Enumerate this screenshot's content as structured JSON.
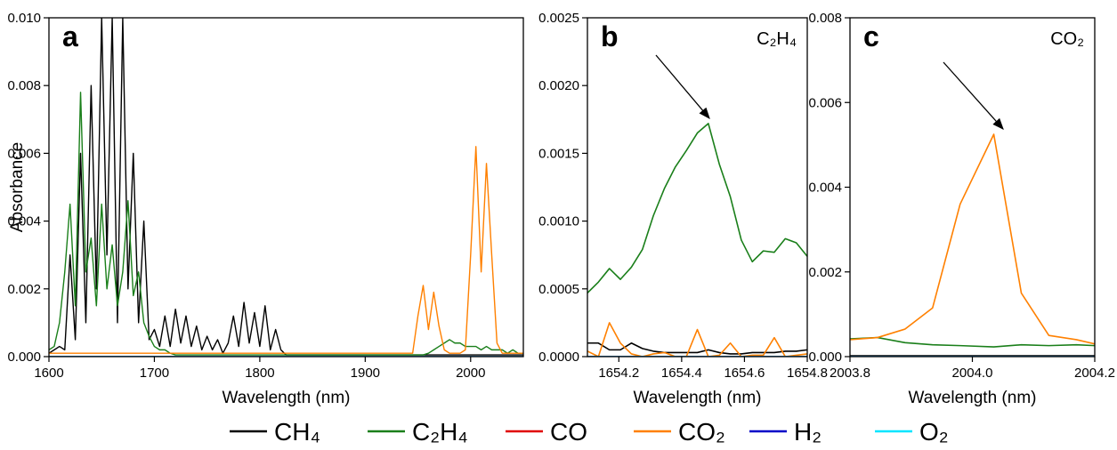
{
  "chart_data": [
    {
      "type": "line",
      "panel_label": "a",
      "xlabel": "Wavelength (nm)",
      "ylabel": "Absorbance",
      "xlim": [
        1600,
        2050
      ],
      "ylim": [
        0,
        0.01
      ],
      "xticks": [
        1600,
        1700,
        1800,
        1900,
        2000
      ],
      "yticks": [
        {
          "value": 0,
          "label": "0.000"
        },
        0.002,
        0.004,
        0.006,
        0.008,
        {
          "value": 0.01,
          "label": "0.010"
        }
      ],
      "x": [
        1600,
        1605,
        1610,
        1615,
        1620,
        1625,
        1630,
        1635,
        1640,
        1645,
        1650,
        1655,
        1660,
        1665,
        1670,
        1675,
        1680,
        1685,
        1690,
        1695,
        1700,
        1705,
        1710,
        1715,
        1720,
        1725,
        1730,
        1735,
        1740,
        1745,
        1750,
        1755,
        1760,
        1765,
        1770,
        1775,
        1780,
        1785,
        1790,
        1795,
        1800,
        1805,
        1810,
        1815,
        1820,
        1825,
        1830,
        1835,
        1840,
        1845,
        1850,
        1855,
        1860,
        1865,
        1870,
        1875,
        1880,
        1885,
        1890,
        1895,
        1900,
        1905,
        1910,
        1915,
        1920,
        1925,
        1930,
        1935,
        1940,
        1945,
        1950,
        1955,
        1960,
        1965,
        1970,
        1975,
        1980,
        1985,
        1990,
        1995,
        2000,
        2005,
        2010,
        2015,
        2020,
        2025,
        2030,
        2035,
        2040,
        2045,
        2050
      ],
      "series": [
        {
          "name": "CH₄",
          "color": "#000000",
          "values": [
            0.0001,
            0.0002,
            0.0003,
            0.0002,
            0.003,
            0.0005,
            0.006,
            0.001,
            0.008,
            0.002,
            0.01,
            0.003,
            0.01,
            0.001,
            0.01,
            0.002,
            0.006,
            0.001,
            0.004,
            0.0005,
            0.0008,
            0.0003,
            0.0012,
            0.0003,
            0.0014,
            0.0004,
            0.0012,
            0.0003,
            0.0009,
            0.0002,
            0.0006,
            0.0002,
            0.0005,
            0.0001,
            0.0004,
            0.0012,
            0.0003,
            0.0016,
            0.0004,
            0.0013,
            0.0003,
            0.0015,
            0.0002,
            0.0008,
            0.0002,
            5e-05,
            5e-05,
            5e-05,
            5e-05,
            5e-05,
            5e-05,
            5e-05,
            5e-05,
            5e-05,
            5e-05,
            5e-05,
            5e-05,
            5e-05,
            5e-05,
            5e-05,
            5e-05,
            5e-05,
            5e-05,
            5e-05,
            5e-05,
            5e-05,
            5e-05,
            5e-05,
            5e-05,
            5e-05,
            5e-05,
            5e-05,
            5e-05,
            5e-05,
            5e-05,
            5e-05,
            5e-05,
            5e-05,
            5e-05,
            5e-05,
            5e-05,
            5e-05,
            5e-05,
            5e-05,
            5e-05,
            5e-05,
            5e-05,
            5e-05,
            5e-05,
            5e-05,
            5e-05
          ]
        },
        {
          "name": "C₂H₄",
          "color": "#1a7f1a",
          "values": [
            0.0002,
            0.0003,
            0.001,
            0.0025,
            0.0045,
            0.0015,
            0.0078,
            0.0025,
            0.0035,
            0.0015,
            0.0045,
            0.002,
            0.0033,
            0.0015,
            0.0025,
            0.0046,
            0.0018,
            0.0025,
            0.001,
            0.0006,
            0.0003,
            0.0002,
            0.0002,
            0.0001,
            5e-05,
            5e-05,
            5e-05,
            5e-05,
            5e-05,
            5e-05,
            5e-05,
            5e-05,
            5e-05,
            5e-05,
            5e-05,
            5e-05,
            5e-05,
            5e-05,
            5e-05,
            5e-05,
            5e-05,
            5e-05,
            5e-05,
            5e-05,
            5e-05,
            5e-05,
            5e-05,
            5e-05,
            5e-05,
            5e-05,
            5e-05,
            5e-05,
            5e-05,
            5e-05,
            5e-05,
            5e-05,
            5e-05,
            5e-05,
            5e-05,
            5e-05,
            5e-05,
            5e-05,
            5e-05,
            5e-05,
            5e-05,
            5e-05,
            5e-05,
            5e-05,
            5e-05,
            5e-05,
            5e-05,
            5e-05,
            0.0001,
            0.0002,
            0.0003,
            0.0004,
            0.0005,
            0.0004,
            0.0004,
            0.0003,
            0.0003,
            0.0003,
            0.0002,
            0.0003,
            0.0002,
            0.0002,
            0.0002,
            0.0001,
            0.0002,
            0.0001,
            0.0001
          ]
        },
        {
          "name": "CO",
          "color": "#e00000",
          "values": [
            0,
            0,
            0,
            0,
            0,
            0,
            0,
            0,
            0,
            0,
            0,
            0,
            0,
            0,
            0,
            0,
            0,
            0,
            0,
            0,
            0,
            0,
            0,
            0,
            0,
            0,
            0,
            0,
            0,
            0,
            0,
            0,
            0,
            0,
            0,
            0,
            0,
            0,
            0,
            0,
            0,
            0,
            0,
            0,
            0,
            0,
            0,
            0,
            0,
            0,
            0,
            0,
            0,
            0,
            0,
            0,
            0,
            0,
            0,
            0,
            0,
            0,
            0,
            0,
            0,
            0,
            0,
            0,
            0,
            0,
            0,
            0,
            0,
            0,
            0,
            0,
            0,
            0,
            0,
            0,
            0,
            0,
            0,
            0,
            0,
            0,
            0,
            0,
            0,
            0,
            0
          ]
        },
        {
          "name": "CO₂",
          "color": "#ff8000",
          "values": [
            0.0001,
            0.0001,
            0.0001,
            0.0001,
            0.0001,
            0.0001,
            0.0001,
            0.0001,
            0.0001,
            0.0001,
            0.0001,
            0.0001,
            0.0001,
            0.0001,
            0.0001,
            0.0001,
            0.0001,
            0.0001,
            0.0001,
            0.0001,
            0.0001,
            0.0001,
            0.0001,
            0.0001,
            0.0001,
            0.0001,
            0.0001,
            0.0001,
            0.0001,
            0.0001,
            0.0001,
            0.0001,
            0.0001,
            0.0001,
            0.0001,
            0.0001,
            0.0001,
            0.0001,
            0.0001,
            0.0001,
            0.0001,
            0.0001,
            0.0001,
            0.0001,
            0.0001,
            0.0001,
            0.0001,
            0.0001,
            0.0001,
            0.0001,
            0.0001,
            0.0001,
            0.0001,
            0.0001,
            0.0001,
            0.0001,
            0.0001,
            0.0001,
            0.0001,
            0.0001,
            0.0001,
            0.0001,
            0.0001,
            0.0001,
            0.0001,
            0.0001,
            0.0001,
            0.0001,
            0.0001,
            0.0001,
            0.0012,
            0.0021,
            0.0008,
            0.0019,
            0.0009,
            0.0002,
            0.0001,
            0.0001,
            0.0001,
            0.0002,
            0.003,
            0.0062,
            0.0025,
            0.0057,
            0.003,
            0.0004,
            0.0001,
            0.0001,
            0.0001,
            0.0001,
            0.0001
          ]
        },
        {
          "name": "H₂",
          "color": "#0000c8",
          "values": [
            0,
            0,
            0,
            0,
            0,
            0,
            0,
            0,
            0,
            0,
            0,
            0,
            0,
            0,
            0,
            0,
            0,
            0,
            0,
            0,
            0,
            0,
            0,
            0,
            0,
            0,
            0,
            0,
            0,
            0,
            0,
            0,
            0,
            0,
            0,
            0,
            0,
            0,
            0,
            0,
            0,
            0,
            0,
            0,
            0,
            0,
            0,
            0,
            0,
            0,
            0,
            0,
            0,
            0,
            0,
            0,
            0,
            0,
            0,
            0,
            0,
            0,
            0,
            0,
            0,
            0,
            0,
            0,
            0,
            0,
            0,
            0,
            0,
            0,
            0,
            0,
            0,
            0,
            0,
            0,
            0,
            0,
            0,
            0,
            0,
            0,
            0,
            0,
            0,
            0,
            0
          ]
        },
        {
          "name": "O₂",
          "color": "#00e5ff",
          "values": [
            0,
            0,
            0,
            0,
            0,
            0,
            0,
            0,
            0,
            0,
            0,
            0,
            0,
            0,
            0,
            0,
            0,
            0,
            0,
            0,
            0,
            0,
            0,
            0,
            0,
            0,
            0,
            0,
            0,
            0,
            0,
            0,
            0,
            0,
            0,
            0,
            0,
            0,
            0,
            0,
            0,
            0,
            0,
            0,
            0,
            0,
            0,
            0,
            0,
            0,
            0,
            0,
            0,
            0,
            0,
            0,
            0,
            0,
            0,
            0,
            0,
            0,
            0,
            0,
            0,
            0,
            0,
            0,
            0,
            0,
            0,
            0,
            0,
            0,
            0,
            0,
            0,
            0,
            0,
            0,
            0,
            0,
            0,
            0,
            0,
            0,
            0,
            0,
            0,
            0,
            0
          ]
        }
      ]
    },
    {
      "type": "line",
      "panel_label": "b",
      "annotation": "C₂H₄",
      "xlabel": "Wavelength (nm)",
      "xlim": [
        1654.1,
        1654.8
      ],
      "ylim": [
        0,
        0.0025
      ],
      "xticks": [
        1654.2,
        1654.4,
        1654.6,
        1654.8
      ],
      "yticks": [
        {
          "value": 0,
          "label": "0.0000"
        },
        0.0005,
        {
          "value": 0.001,
          "label": "0.0010"
        },
        0.0015,
        {
          "value": 0.002,
          "label": "0.0020"
        },
        0.0025
      ],
      "x": [
        1654.1,
        1654.135,
        1654.17,
        1654.205,
        1654.24,
        1654.275,
        1654.31,
        1654.345,
        1654.38,
        1654.415,
        1654.45,
        1654.485,
        1654.52,
        1654.555,
        1654.59,
        1654.625,
        1654.66,
        1654.695,
        1654.73,
        1654.765,
        1654.8
      ],
      "series": [
        {
          "color": "#000000",
          "values": [
            0.0001,
            0.0001,
            5e-05,
            5e-05,
            0.0001,
            6e-05,
            4e-05,
            3e-05,
            3e-05,
            3e-05,
            3e-05,
            5e-05,
            3e-05,
            2e-05,
            2e-05,
            3e-05,
            3e-05,
            3e-05,
            4e-05,
            4e-05,
            5e-05
          ]
        },
        {
          "color": "#1a7f1a",
          "values": [
            0.00047,
            0.00055,
            0.00065,
            0.00057,
            0.00066,
            0.00079,
            0.00104,
            0.00124,
            0.0014,
            0.00152,
            0.00165,
            0.00172,
            0.00142,
            0.00118,
            0.00086,
            0.0007,
            0.00078,
            0.00077,
            0.00087,
            0.00084,
            0.00074
          ]
        },
        {
          "color": "#e00000",
          "values": [
            0,
            0,
            0,
            0,
            0,
            0,
            0,
            0,
            0,
            0,
            0,
            0,
            0,
            0,
            0,
            0,
            0,
            0,
            0,
            0,
            0
          ]
        },
        {
          "color": "#ff8000",
          "values": [
            4e-05,
            0,
            0.00025,
            0.0001,
            2e-05,
            0,
            2e-05,
            3e-05,
            0,
            0,
            0.0002,
            0,
            1e-05,
            0.0001,
            0,
            1e-05,
            1e-05,
            0.00014,
            0,
            1e-05,
            2e-05
          ]
        },
        {
          "color": "#0000c8",
          "values": [
            0,
            0,
            0,
            0,
            0,
            0,
            0,
            0,
            0,
            0,
            0,
            0,
            0,
            0,
            0,
            0,
            0,
            0,
            0,
            0,
            0
          ]
        },
        {
          "color": "#00e5ff",
          "values": [
            0,
            0,
            0,
            0,
            0,
            0,
            0,
            0,
            0,
            0,
            0,
            0,
            0,
            0,
            0,
            0,
            0,
            0,
            0,
            0,
            0
          ]
        }
      ]
    },
    {
      "type": "line",
      "panel_label": "c",
      "annotation": "CO₂",
      "xlabel": "Wavelength (nm)",
      "xlim": [
        2003.8,
        2004.2
      ],
      "ylim": [
        0,
        0.008
      ],
      "xticks": [
        2003.8,
        {
          "value": 2004,
          "label": "2004.0"
        },
        2004.2
      ],
      "yticks": [
        {
          "value": 0,
          "label": "0.000"
        },
        0.002,
        0.004,
        0.006,
        0.008
      ],
      "x": [
        2003.8,
        2003.845,
        2003.89,
        2003.935,
        2003.98,
        2004.035,
        2004.08,
        2004.125,
        2004.17,
        2004.2
      ],
      "series": [
        {
          "color": "#000000",
          "values": [
            2e-05,
            2e-05,
            2e-05,
            2e-05,
            2e-05,
            2e-05,
            2e-05,
            2e-05,
            2e-05,
            2e-05
          ]
        },
        {
          "color": "#1a7f1a",
          "values": [
            0.00042,
            0.00045,
            0.00033,
            0.00028,
            0.00026,
            0.00023,
            0.00028,
            0.00026,
            0.00028,
            0.00026
          ]
        },
        {
          "color": "#e00000",
          "values": [
            0,
            0,
            0,
            0,
            0,
            0,
            0,
            0,
            0,
            0
          ]
        },
        {
          "color": "#ff8000",
          "values": [
            0.0004,
            0.00045,
            0.00065,
            0.00115,
            0.0036,
            0.00525,
            0.0015,
            0.0005,
            0.0004,
            0.0003
          ]
        },
        {
          "color": "#0000c8",
          "values": [
            0,
            0,
            0,
            0,
            0,
            0,
            0,
            0,
            0,
            0
          ]
        },
        {
          "color": "#00e5ff",
          "values": [
            0,
            0,
            0,
            0,
            0,
            0,
            0,
            0,
            0,
            0
          ]
        }
      ]
    }
  ]
}
